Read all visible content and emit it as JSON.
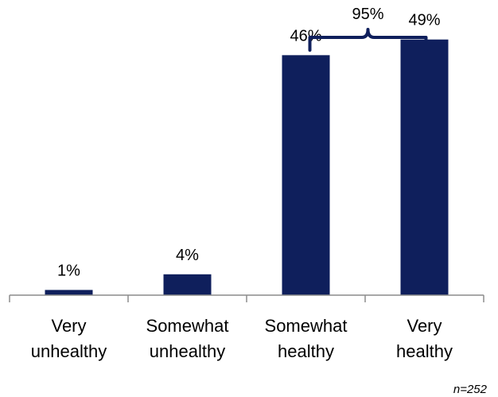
{
  "chart_data": {
    "type": "bar",
    "categories": [
      [
        "Very",
        "unhealthy"
      ],
      [
        "Somewhat",
        "unhealthy"
      ],
      [
        "Somewhat",
        "healthy"
      ],
      [
        "Very",
        "healthy"
      ]
    ],
    "values": [
      1,
      4,
      46,
      49
    ],
    "value_labels": [
      "1%",
      "4%",
      "46%",
      "49%"
    ],
    "ylim": [
      0,
      52
    ],
    "bar_color": "#0f1f5c",
    "axis_color": "#8c8c8c",
    "grid": false,
    "bracket": {
      "label": "95%",
      "spans_categories": [
        2,
        3
      ],
      "color": "#0f1f5c"
    },
    "note": "n=252"
  }
}
